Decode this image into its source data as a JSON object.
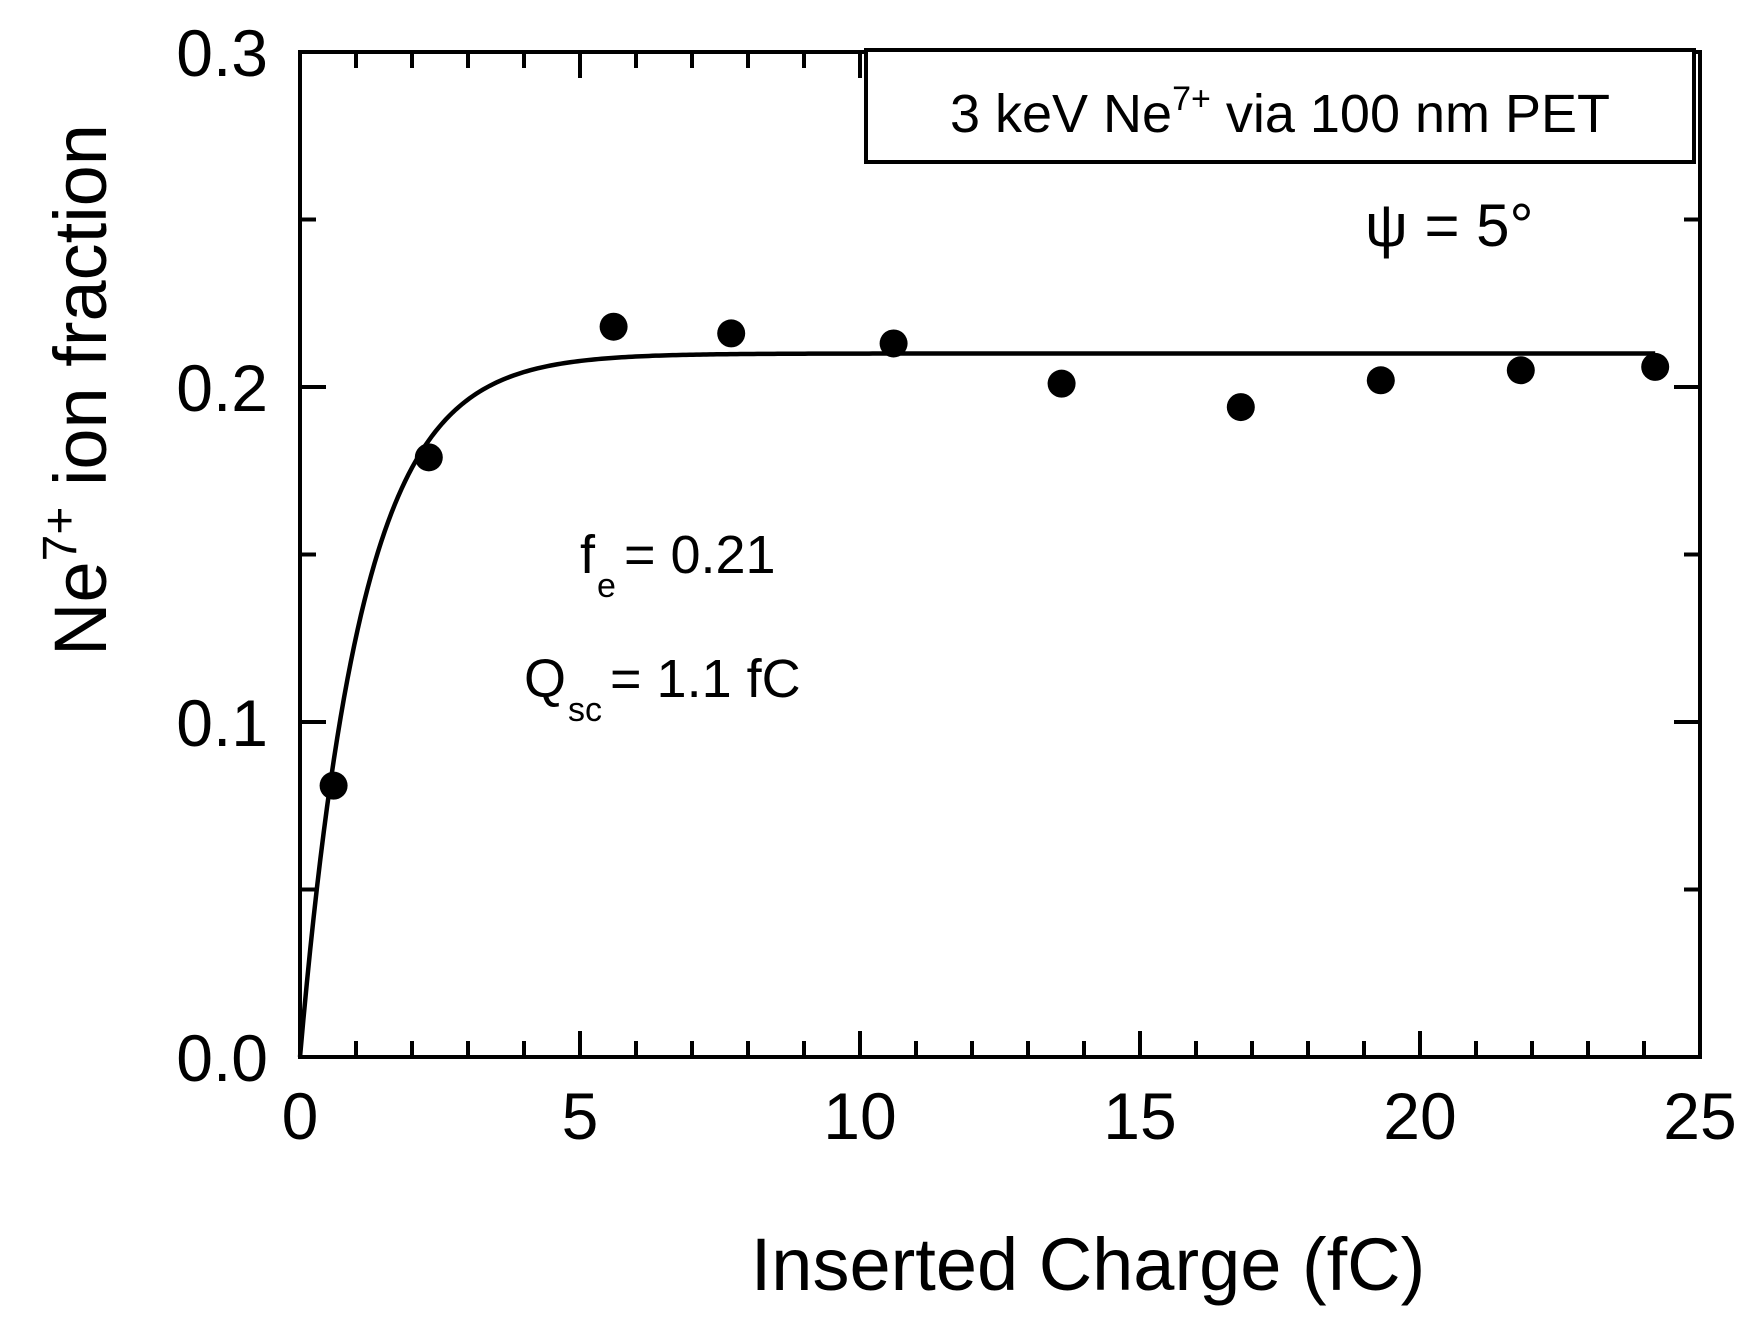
{
  "chart_data": {
    "type": "scatter",
    "legend_box_text": "3 keV Ne",
    "legend_box_sup": "7+",
    "legend_box_rest": " via 100 nm PET",
    "angle_annotation": "ψ = 5°",
    "fit_fe_main": "f",
    "fit_fe_sub": "e",
    "fit_fe_value": "= 0.21",
    "fit_qsc_main": "Q",
    "fit_qsc_sub": "sc",
    "fit_qsc_value": "= 1.1 fC",
    "xlabel": "Inserted Charge (fC)",
    "ylabel_main": "Ne",
    "ylabel_sup": "7+",
    "ylabel_rest": " ion fraction",
    "xlim": [
      0,
      25
    ],
    "ylim": [
      0.0,
      0.3
    ],
    "xticks": [
      0,
      5,
      10,
      15,
      20,
      25
    ],
    "xtick_labels": [
      "0",
      "5",
      "10",
      "15",
      "20",
      "25"
    ],
    "yticks": [
      0.0,
      0.1,
      0.2,
      0.3
    ],
    "ytick_labels": [
      "0.0",
      "0.1",
      "0.2",
      "0.3"
    ],
    "series": [
      {
        "name": "data",
        "x": [
          0.6,
          2.3,
          5.6,
          7.7,
          10.6,
          13.6,
          16.8,
          19.3,
          21.8,
          24.2
        ],
        "y": [
          0.081,
          0.179,
          0.218,
          0.216,
          0.213,
          0.201,
          0.194,
          0.202,
          0.205,
          0.206
        ]
      }
    ],
    "fit": {
      "fe": 0.21,
      "Qsc": 1.1,
      "x_max": 24.2
    }
  }
}
